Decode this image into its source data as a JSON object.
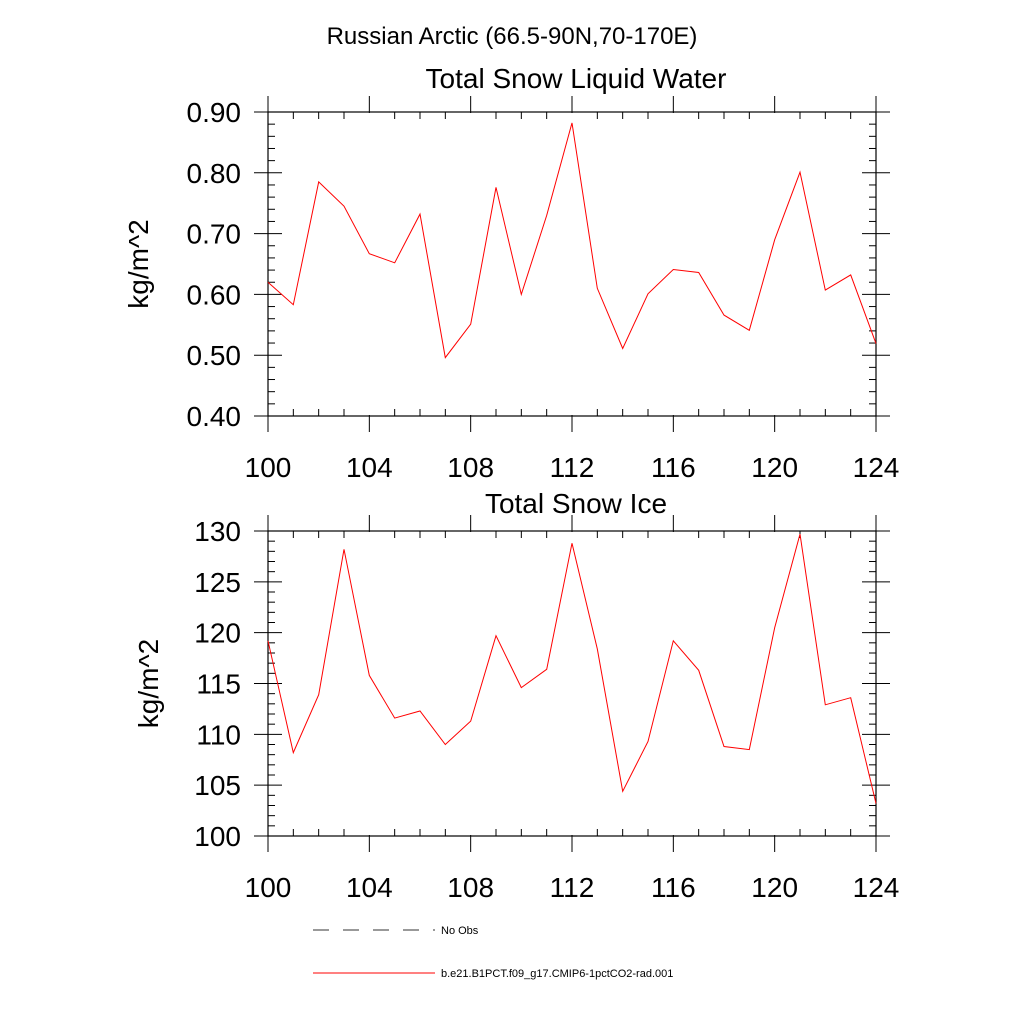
{
  "figure": {
    "title": "Russian Arctic (66.5-90N,70-170E)"
  },
  "chart_data": [
    {
      "type": "line",
      "title": "Total Snow Liquid Water",
      "xlabel": "",
      "ylabel": "kg/m^2",
      "xlim": [
        100,
        124
      ],
      "ylim": [
        0.4,
        0.9
      ],
      "xticks": [
        100,
        104,
        108,
        112,
        116,
        120,
        124
      ],
      "xtick_labels": [
        "100",
        "104",
        "108",
        "112",
        "116",
        "120",
        "124"
      ],
      "yticks": [
        0.4,
        0.5,
        0.6,
        0.7,
        0.8,
        0.9
      ],
      "ytick_labels": [
        "0.40",
        "0.50",
        "0.60",
        "0.70",
        "0.80",
        "0.90"
      ],
      "y_minor_step": 0.02,
      "x_minor_step": 1,
      "series": [
        {
          "name": "b.e21.B1PCT.f09_g17.CMIP6-1pctCO2-rad.001",
          "color": "#ff0000",
          "x": [
            100,
            101,
            102,
            103,
            104,
            105,
            106,
            107,
            108,
            109,
            110,
            111,
            112,
            113,
            114,
            115,
            116,
            117,
            118,
            119,
            120,
            121,
            122,
            123,
            124
          ],
          "values": [
            0.62,
            0.583,
            0.785,
            0.745,
            0.667,
            0.652,
            0.732,
            0.496,
            0.551,
            0.776,
            0.6,
            0.73,
            0.882,
            0.61,
            0.511,
            0.601,
            0.641,
            0.636,
            0.566,
            0.541,
            0.69,
            0.801,
            0.607,
            0.632,
            0.519
          ]
        }
      ]
    },
    {
      "type": "line",
      "title": "Total Snow Ice",
      "xlabel": "",
      "ylabel": "kg/m^2",
      "xlim": [
        100,
        124
      ],
      "ylim": [
        100,
        130
      ],
      "xticks": [
        100,
        104,
        108,
        112,
        116,
        120,
        124
      ],
      "xtick_labels": [
        "100",
        "104",
        "108",
        "112",
        "116",
        "120",
        "124"
      ],
      "yticks": [
        100,
        105,
        110,
        115,
        120,
        125,
        130
      ],
      "ytick_labels": [
        "100",
        "105",
        "110",
        "115",
        "120",
        "125",
        "130"
      ],
      "y_minor_step": 1,
      "x_minor_step": 1,
      "series": [
        {
          "name": "b.e21.B1PCT.f09_g17.CMIP6-1pctCO2-rad.001",
          "color": "#ff0000",
          "x": [
            100,
            101,
            102,
            103,
            104,
            105,
            106,
            107,
            108,
            109,
            110,
            111,
            112,
            113,
            114,
            115,
            116,
            117,
            118,
            119,
            120,
            121,
            122,
            123,
            124
          ],
          "values": [
            119.2,
            108.2,
            113.9,
            128.2,
            115.8,
            111.6,
            112.3,
            109.0,
            111.3,
            119.7,
            114.6,
            116.4,
            128.8,
            118.4,
            104.4,
            109.3,
            119.2,
            116.3,
            108.8,
            108.5,
            120.5,
            129.7,
            112.9,
            113.6,
            103.2
          ]
        }
      ]
    }
  ],
  "legend": {
    "position": "bottom-center",
    "entries": [
      {
        "label": "No Obs",
        "style": "dashed",
        "color": "#333333"
      },
      {
        "label": "b.e21.B1PCT.f09_g17.CMIP6-1pctCO2-rad.001",
        "style": "solid",
        "color": "#ff0000"
      }
    ]
  }
}
